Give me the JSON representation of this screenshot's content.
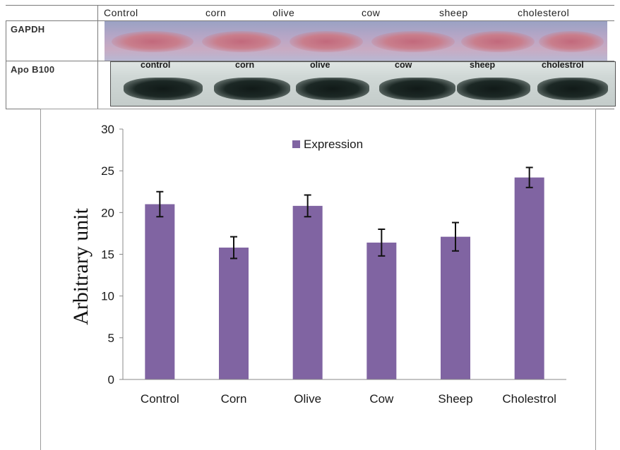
{
  "blot": {
    "header_lanes": [
      "Control",
      "corn",
      "olive",
      "cow",
      "sheep",
      "cholesterol"
    ],
    "rows": [
      {
        "label": "GAPDH"
      },
      {
        "label": "Apo B100",
        "lane_labels": [
          "control",
          "corn",
          "olive",
          "cow",
          "sheep",
          "cholestrol"
        ]
      }
    ],
    "colors": {
      "gapdh_band": "#c2697c",
      "apob_band": "#141d1b"
    }
  },
  "chart_data": {
    "type": "bar",
    "categories": [
      "Control",
      "Corn",
      "Olive",
      "Cow",
      "Sheep",
      "Cholestrol"
    ],
    "series": [
      {
        "name": "Expression",
        "values": [
          21.0,
          15.8,
          20.8,
          16.4,
          17.1,
          24.2
        ],
        "errors": [
          1.5,
          1.3,
          1.3,
          1.6,
          1.7,
          1.2
        ],
        "color": "#8064a2"
      }
    ],
    "title": "",
    "xlabel": "",
    "ylabel": "Arbitrary unit",
    "ylim": [
      0,
      30
    ],
    "yticks": [
      0,
      5,
      10,
      15,
      20,
      25,
      30
    ],
    "grid": false,
    "legend": "top-center"
  }
}
